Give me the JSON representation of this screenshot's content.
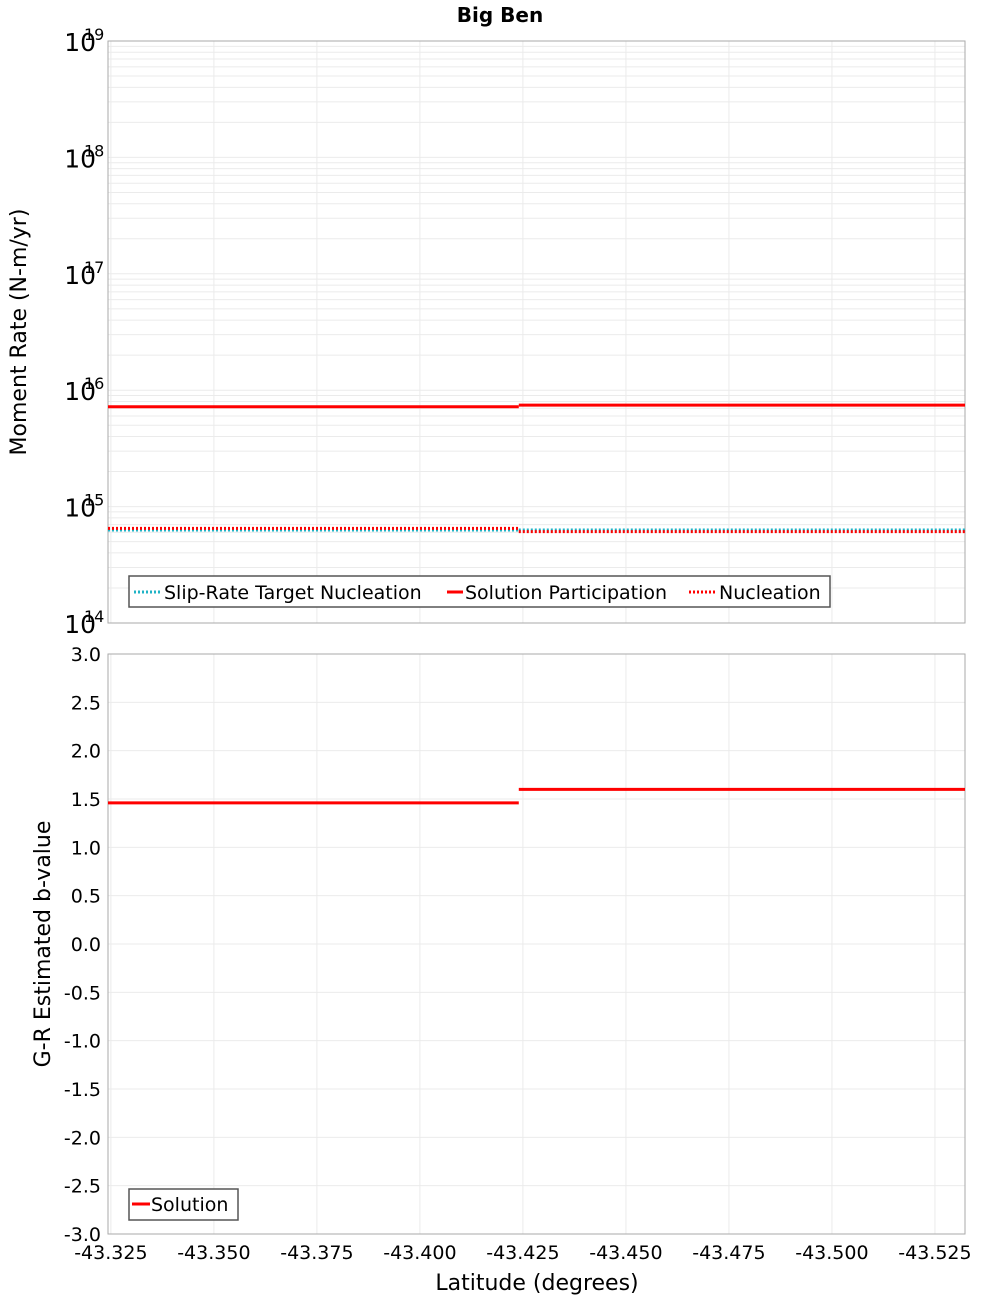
{
  "title": "Big Ben",
  "colors": {
    "solution": "#ff0000",
    "target": "#1fb3c6",
    "nucleation": "#ff0000",
    "grid": "#ebebeb",
    "frame": "#aaaaaa",
    "legend_border": "#555555"
  },
  "x_axis": {
    "label": "Latitude (degrees)",
    "range": [
      -43.3243,
      -43.5323
    ],
    "ticks": [
      "-43.325",
      "-43.350",
      "-43.375",
      "-43.400",
      "-43.425",
      "-43.450",
      "-43.475",
      "-43.500",
      "-43.525"
    ],
    "tick_values": [
      -43.325,
      -43.35,
      -43.375,
      -43.4,
      -43.425,
      -43.45,
      -43.475,
      -43.5,
      -43.525
    ]
  },
  "top_plot": {
    "ylabel": "Moment Rate (N-m/yr)",
    "yscale": "log",
    "ylim_exp": [
      14,
      19
    ],
    "tick_labels": [
      {
        "base": "10",
        "exp": "19"
      },
      {
        "base": "10",
        "exp": "18"
      },
      {
        "base": "10",
        "exp": "17"
      },
      {
        "base": "10",
        "exp": "16"
      },
      {
        "base": "10",
        "exp": "15"
      },
      {
        "base": "10",
        "exp": "14"
      }
    ],
    "legend": [
      "Slip-Rate Target Nucleation",
      "Solution Participation",
      "Nucleation"
    ]
  },
  "bottom_plot": {
    "ylabel": "G-R Estimated b-value",
    "ylim": [
      -3.0,
      3.0
    ],
    "ticks": [
      "3.0",
      "2.5",
      "2.0",
      "1.5",
      "1.0",
      "0.5",
      "0.0",
      "-0.5",
      "-1.0",
      "-1.5",
      "-2.0",
      "-2.5",
      "-3.0"
    ],
    "legend": [
      "Solution"
    ]
  },
  "chart_data": [
    {
      "type": "line",
      "title": "Big Ben",
      "xlabel": "Latitude (degrees)",
      "ylabel": "Moment Rate (N-m/yr)",
      "yscale": "log",
      "ylim": [
        100000000000000.0,
        1e+19
      ],
      "xlim": [
        -43.3243,
        -43.5323
      ],
      "grid": true,
      "legend_position": "lower-left inside",
      "x": [
        -43.3243,
        -43.374,
        -43.424,
        -43.476,
        -43.5323
      ],
      "series": [
        {
          "name": "Slip-Rate Target Nucleation",
          "style": "dotted",
          "color": "#1fb3c6",
          "segments": [
            [
              -43.3243,
              -43.424,
              630000000000000.0
            ],
            [
              -43.424,
              -43.5323,
              630000000000000.0
            ]
          ]
        },
        {
          "name": "Solution Participation",
          "style": "solid",
          "color": "#ff0000",
          "segments": [
            [
              -43.3243,
              -43.424,
              7200000000000000.0
            ],
            [
              -43.424,
              -43.5323,
              7450000000000000.0
            ]
          ]
        },
        {
          "name": "Nucleation",
          "style": "dotted",
          "color": "#ff0000",
          "segments": [
            [
              -43.3243,
              -43.424,
              650000000000000.0
            ],
            [
              -43.424,
              -43.5323,
              610000000000000.0
            ]
          ]
        }
      ]
    },
    {
      "type": "line",
      "xlabel": "Latitude (degrees)",
      "ylabel": "G-R Estimated b-value",
      "ylim": [
        -3.0,
        3.0
      ],
      "xlim": [
        -43.3243,
        -43.5323
      ],
      "grid": true,
      "legend_position": "lower-left inside",
      "series": [
        {
          "name": "Solution",
          "style": "solid",
          "color": "#ff0000",
          "segments": [
            [
              -43.3243,
              -43.424,
              1.46
            ],
            [
              -43.424,
              -43.5323,
              1.6
            ]
          ]
        }
      ]
    }
  ]
}
